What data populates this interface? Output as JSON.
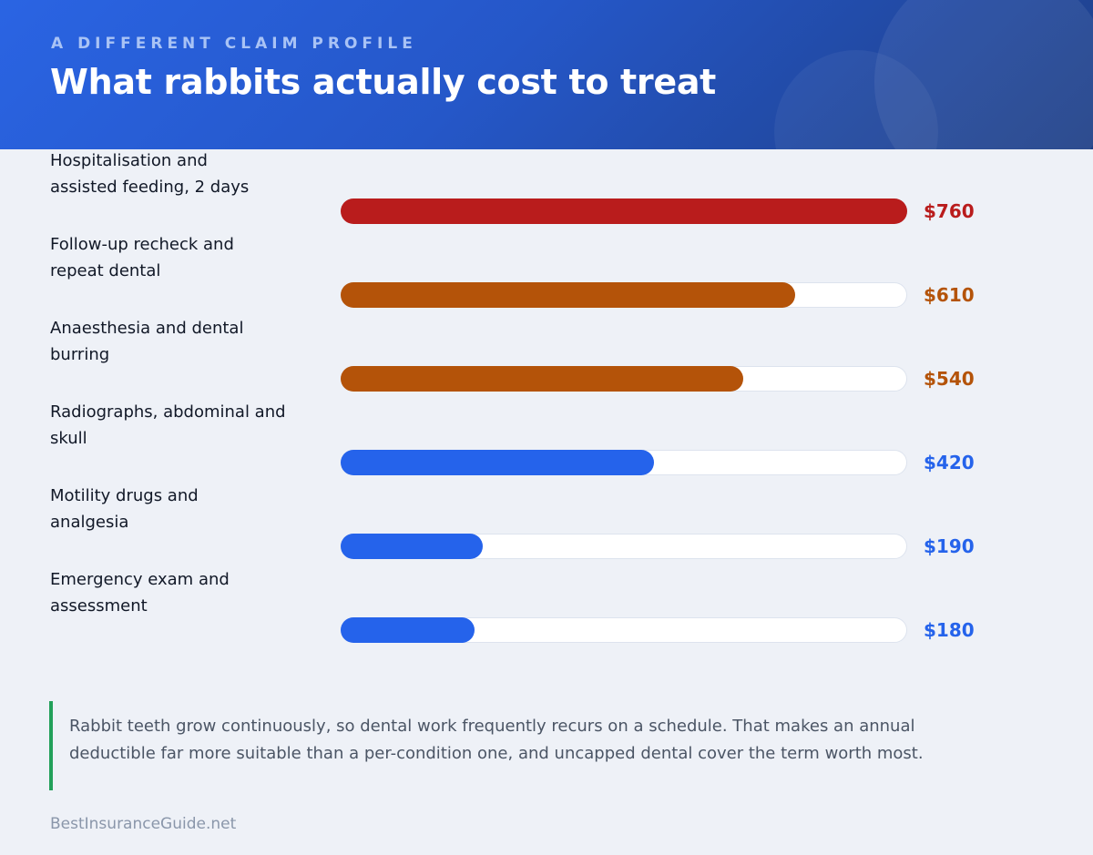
{
  "header": {
    "eyebrow": "A DIFFERENT CLAIM PROFILE",
    "title": "What rabbits actually cost to treat"
  },
  "chart_data": {
    "type": "bar",
    "orientation": "horizontal",
    "title": "What rabbits actually cost to treat",
    "categories": [
      "Hospitalisation and\nassisted feeding, 2 days",
      "Follow-up recheck and\nrepeat dental",
      "Anaesthesia and dental\nburring",
      "Radiographs, abdominal and\nskull",
      "Motility drugs and\nanalgesia",
      "Emergency exam and\nassessment"
    ],
    "values": [
      760,
      610,
      540,
      420,
      190,
      180
    ],
    "value_labels": [
      "$760",
      "$610",
      "$540",
      "$420",
      "$190",
      "$180"
    ],
    "colors": [
      "#b91c1c",
      "#b45309",
      "#b45309",
      "#2563eb",
      "#2563eb",
      "#2563eb"
    ],
    "xlim": [
      0,
      760
    ],
    "grid": false
  },
  "note": {
    "text": "Rabbit teeth grow continuously, so dental work frequently recurs on a schedule. That makes an annual deductible far more suitable than a per-condition one, and uncapped dental cover the term worth most.",
    "accent_color": "#22a05a"
  },
  "footer": {
    "source": "BestInsuranceGuide.net"
  }
}
